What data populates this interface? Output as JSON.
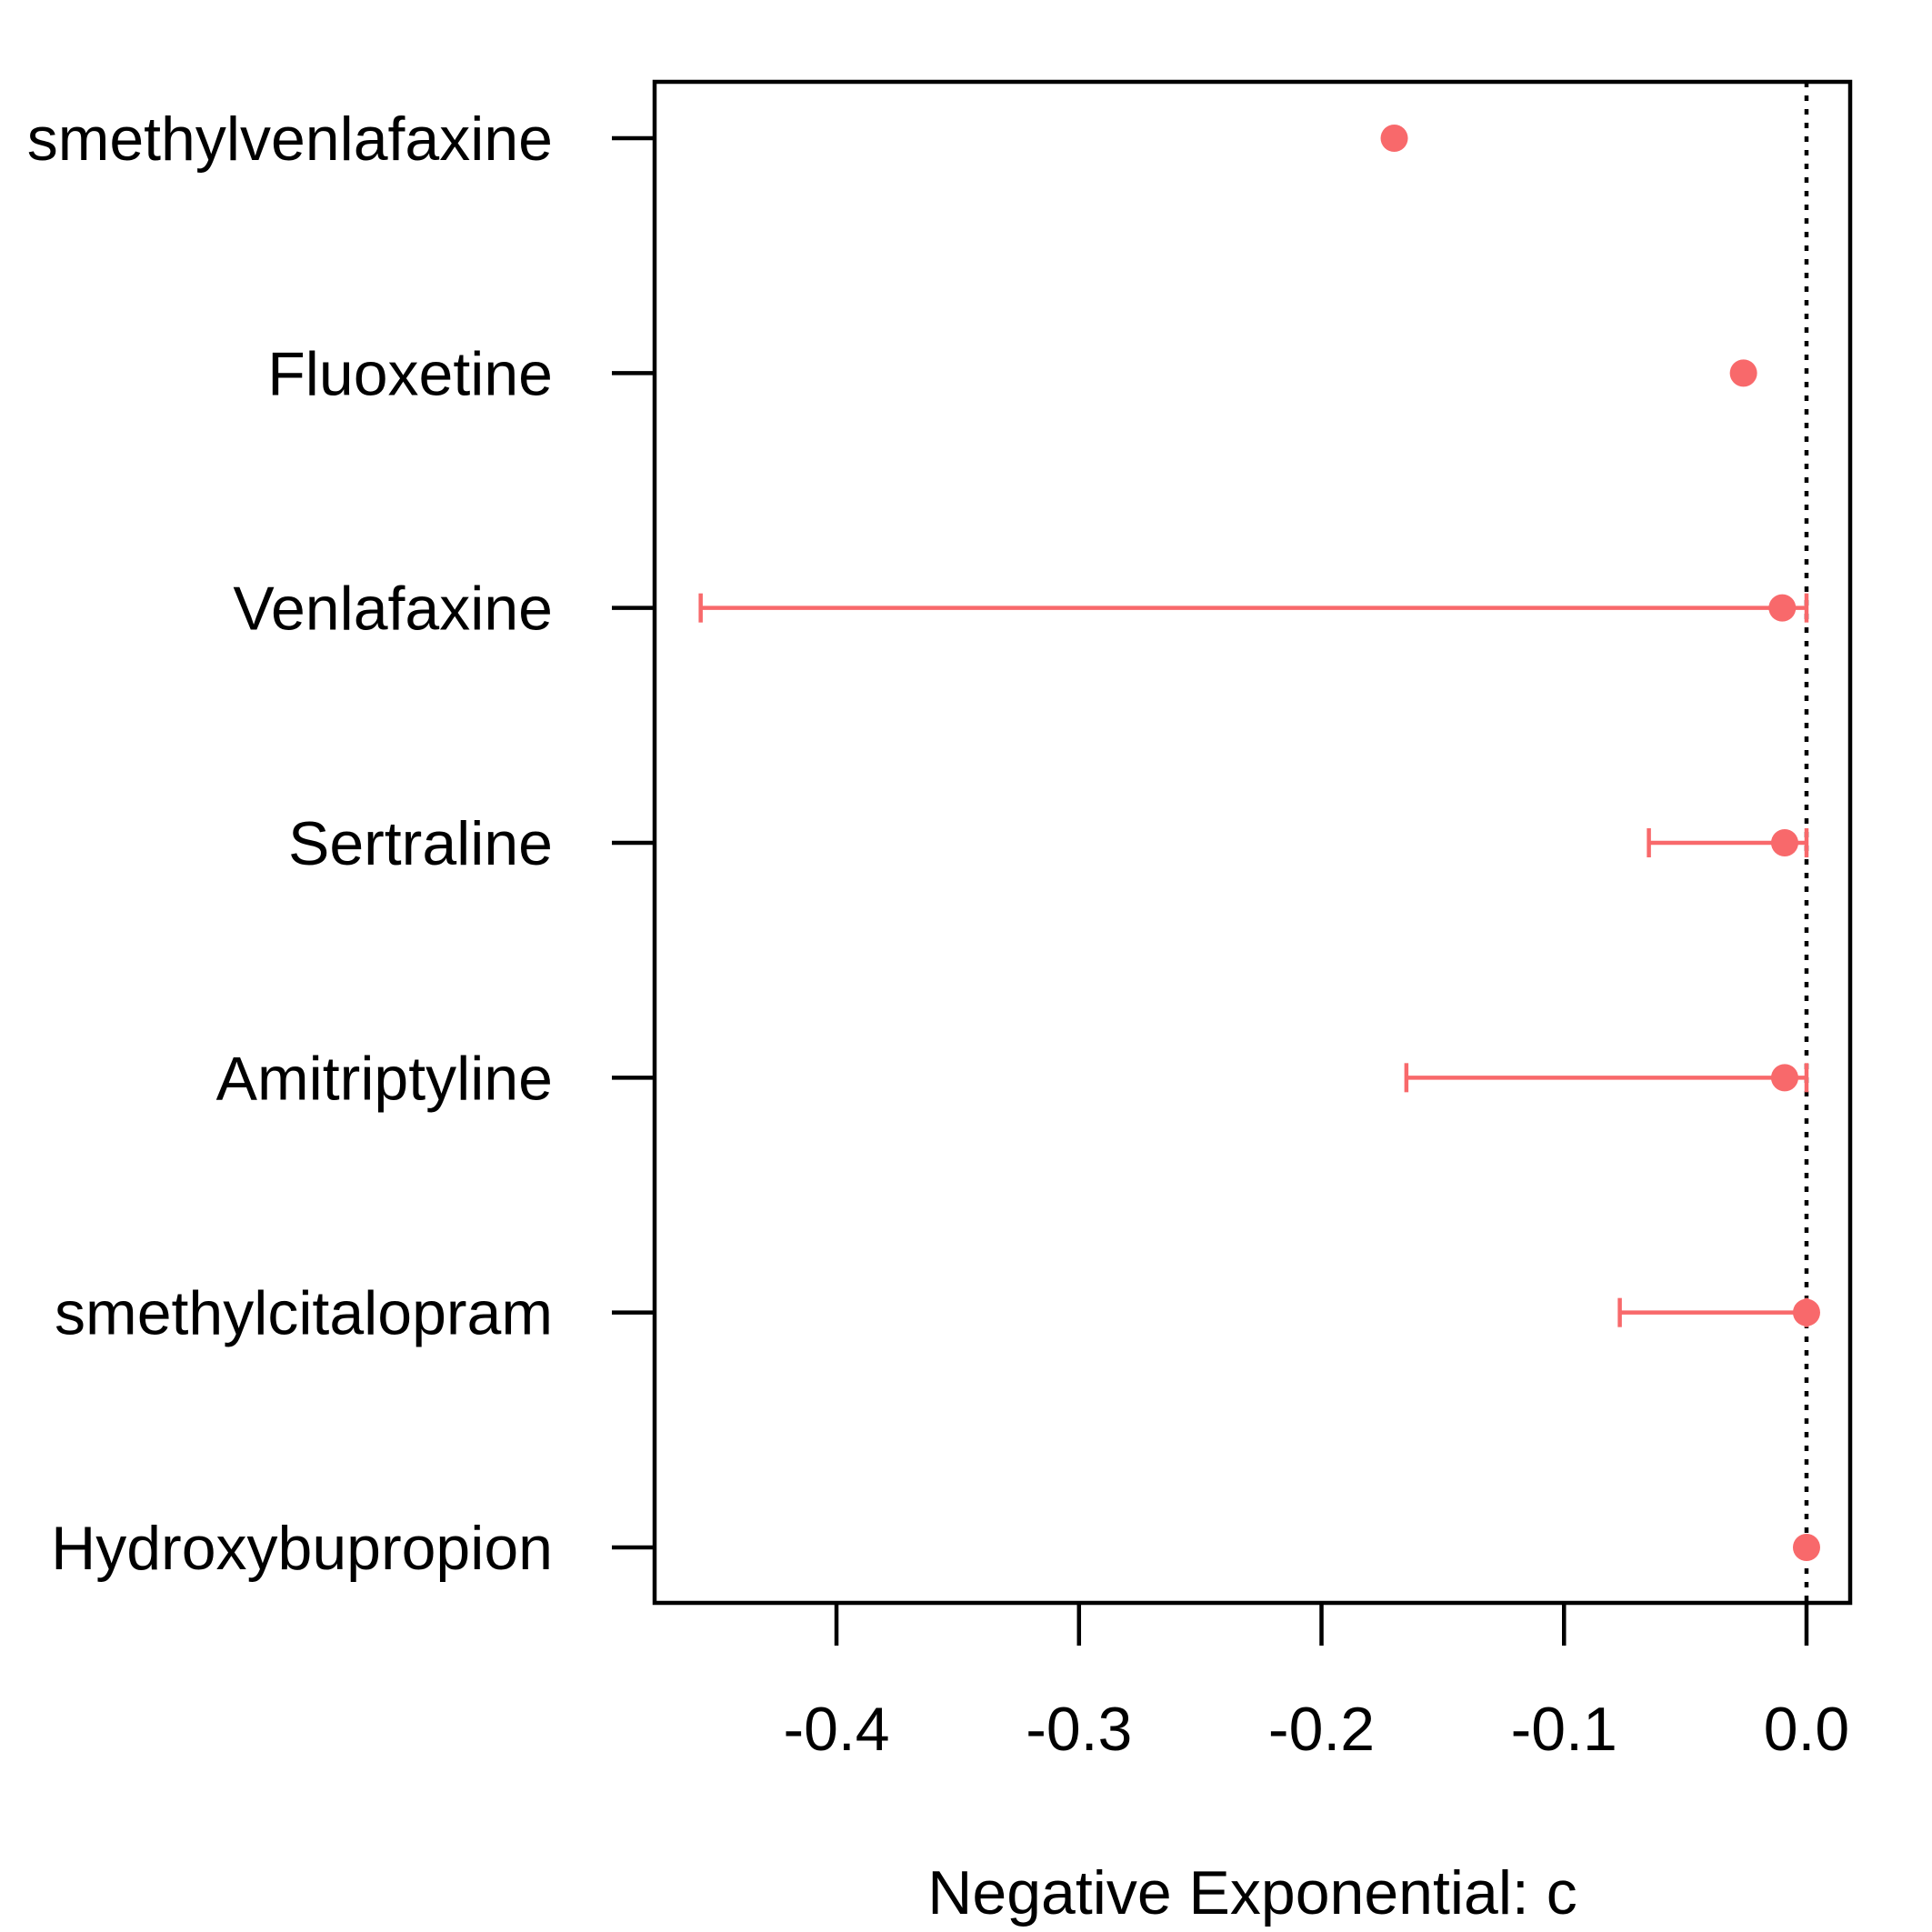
{
  "chart_data": {
    "type": "scatter",
    "subtype": "dot plot with error bars",
    "xlabel": "Negative Exponential: c",
    "xlim": [
      -0.475,
      0.018
    ],
    "x_ticks": [
      -0.4,
      -0.3,
      -0.2,
      -0.1,
      0.0
    ],
    "x_tick_labels": [
      "-0.4",
      "-0.3",
      "-0.2",
      "-0.1",
      "0.0"
    ],
    "reference_line": {
      "x": 0.0,
      "style": "dotted",
      "color": "#000000"
    },
    "point_color": "#f8696b",
    "grid": false,
    "categories": [
      "smethylvenlafaxine",
      "Fluoxetine",
      "Venlafaxine",
      "Sertraline",
      "Amitriptyline",
      "smethylcitalopram",
      "Hydroxybupropion"
    ],
    "points": [
      {
        "category": "smethylvenlafaxine",
        "value": -0.17,
        "lower": null,
        "upper": null
      },
      {
        "category": "Fluoxetine",
        "value": -0.026,
        "lower": null,
        "upper": null
      },
      {
        "category": "Venlafaxine",
        "value": -0.01,
        "lower": -0.456,
        "upper": 0.0
      },
      {
        "category": "Sertraline",
        "value": -0.009,
        "lower": -0.065,
        "upper": 0.0
      },
      {
        "category": "Amitriptyline",
        "value": -0.009,
        "lower": -0.165,
        "upper": 0.0
      },
      {
        "category": "smethylcitalopram",
        "value": 0.0,
        "lower": -0.077,
        "upper": 0.0
      },
      {
        "category": "Hydroxybupropion",
        "value": 0.0,
        "lower": null,
        "upper": null
      }
    ]
  }
}
